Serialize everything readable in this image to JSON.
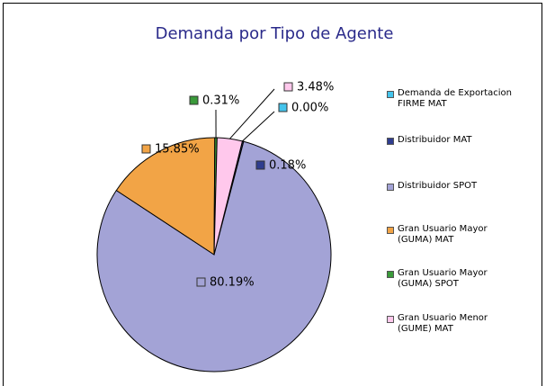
{
  "chart_data": {
    "type": "pie",
    "title": "Demanda por Tipo de Agente",
    "categories": [
      "Demanda de Exportacion FIRME MAT",
      "Distribuidor MAT",
      "Distribuidor SPOT",
      "Gran Usuario Mayor (GUMA) MAT",
      "Gran Usuario Mayor (GUMA) SPOT",
      "Gran Usuario Menor (GUME) MAT"
    ],
    "values": [
      0.0,
      0.18,
      80.19,
      15.85,
      0.31,
      3.48
    ],
    "value_labels": [
      "0.00%",
      "0.18%",
      "80.19%",
      "15.85%",
      "0.31%",
      "3.48%"
    ],
    "colors": [
      "#44c4ec",
      "#2f3d8f",
      "#a3a3d6",
      "#f2a446",
      "#3a9a3a",
      "#ffc8ec"
    ],
    "legend": "right"
  }
}
